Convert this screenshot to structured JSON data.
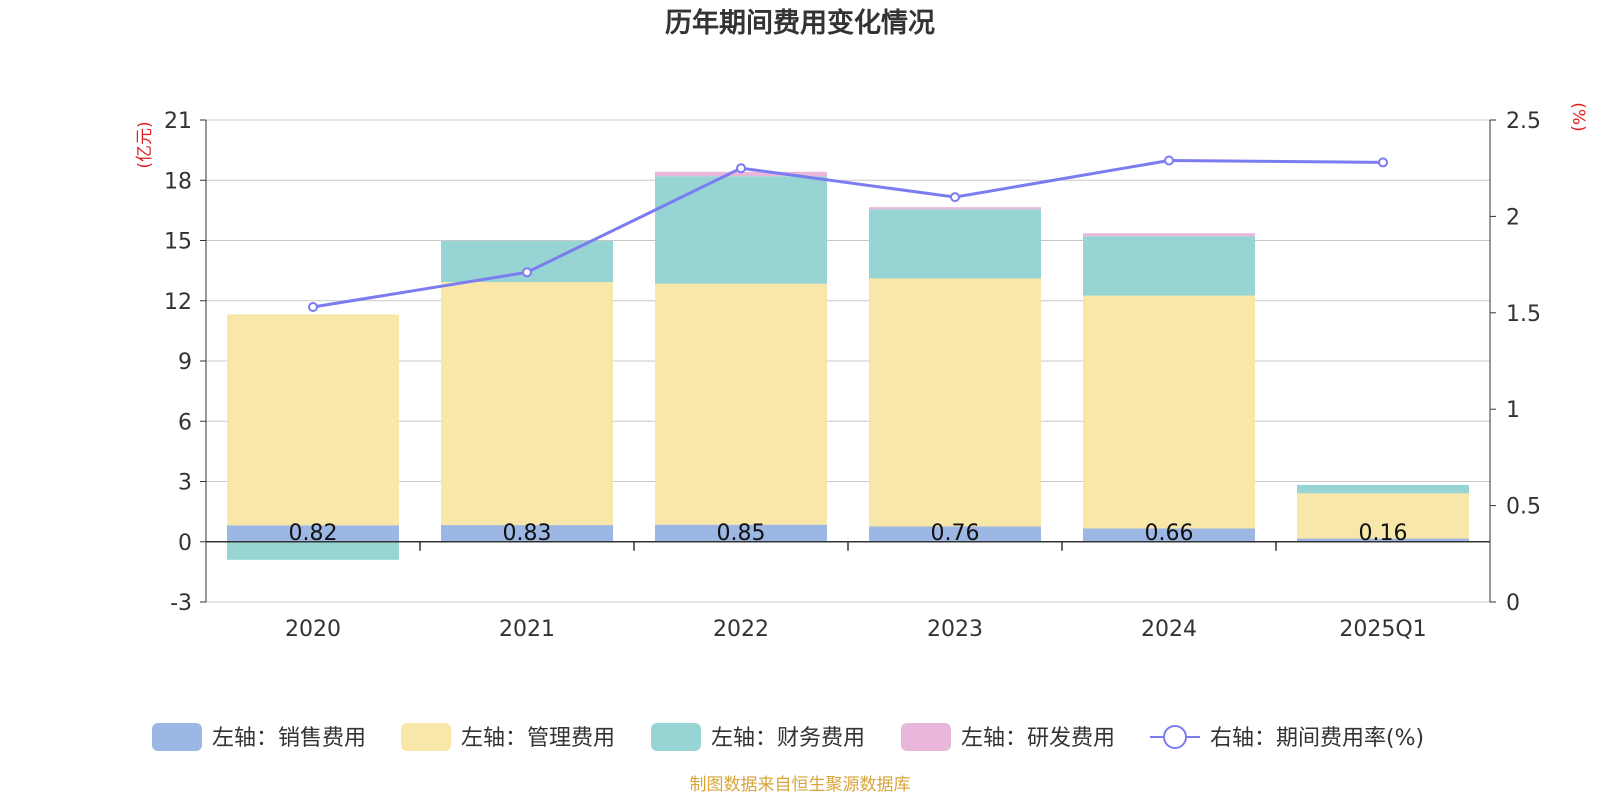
{
  "colors": {
    "sales": "#9cb7e3",
    "admin": "#f8e7a8",
    "finance": "#97d4d4",
    "rnd": "#e8b7da",
    "rate": "#7b7cf0",
    "axis_unit": "#e02020",
    "source": "#d9a43a",
    "grid": "#c8c8c8",
    "text": "#333333"
  },
  "source_note": "制图数据来自恒生聚源数据库",
  "chart_data": {
    "type": "bar",
    "stacked": true,
    "title": "历年期间费用变化情况",
    "left_axis_unit": "(亿元)",
    "right_axis_unit": "(%)",
    "categories": [
      "2020",
      "2021",
      "2022",
      "2023",
      "2024",
      "2025Q1"
    ],
    "ylim_left": [
      -3,
      21
    ],
    "yticks_left": [
      -3,
      0,
      3,
      6,
      9,
      12,
      15,
      18,
      21
    ],
    "ylim_right": [
      0,
      2.5
    ],
    "yticks_right": [
      0,
      0.5,
      1,
      1.5,
      2,
      2.5
    ],
    "yticks_right_labels": [
      "0",
      "0.5",
      "1",
      "1.5",
      "2",
      "2.5"
    ],
    "grid": true,
    "series": [
      {
        "name": "左轴：销售费用",
        "key": "sales",
        "axis": "left",
        "values": [
          0.82,
          0.83,
          0.85,
          0.76,
          0.66,
          0.16
        ],
        "labels": [
          "0.82",
          "0.83",
          "0.85",
          "0.76",
          "0.66",
          "0.16"
        ]
      },
      {
        "name": "左轴：管理费用",
        "key": "admin",
        "axis": "left",
        "values": [
          10.5,
          12.1,
          12.0,
          12.35,
          11.6,
          2.25
        ]
      },
      {
        "name": "左轴：财务费用",
        "key": "finance",
        "axis": "left",
        "values": [
          -0.9,
          2.05,
          5.35,
          3.45,
          2.95,
          0.42
        ]
      },
      {
        "name": "左轴：研发费用",
        "key": "rnd",
        "axis": "left",
        "values": [
          0,
          0,
          0.22,
          0.1,
          0.15,
          0
        ]
      },
      {
        "name": "右轴：期间费用率(%)",
        "key": "rate",
        "axis": "right",
        "type": "line",
        "values": [
          1.53,
          1.71,
          2.25,
          2.1,
          2.29,
          2.28
        ]
      }
    ],
    "legend_position": "bottom-center"
  }
}
